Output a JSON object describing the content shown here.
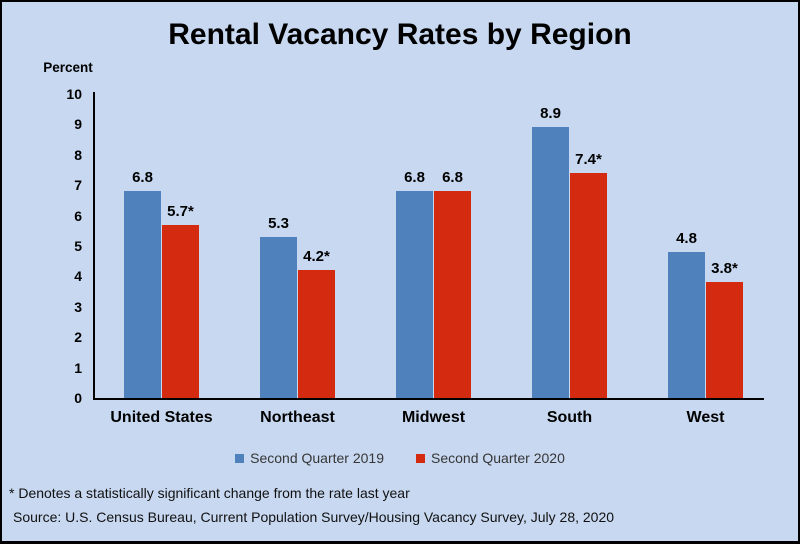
{
  "frame": {
    "background_color": "#C7D8F0",
    "border_color": "#000000"
  },
  "chart_data": {
    "type": "bar",
    "title": "Rental Vacancy Rates by Region",
    "xlabel": "",
    "ylabel": "Percent",
    "ylim": [
      0,
      10
    ],
    "ytick_step": 1,
    "grid": false,
    "legend_position": "bottom",
    "categories": [
      "United States",
      "Northeast",
      "Midwest",
      "South",
      "West"
    ],
    "series": [
      {
        "name": "Second Quarter 2019",
        "color": "#4F81BD",
        "values": [
          6.8,
          5.3,
          6.8,
          8.9,
          4.8
        ],
        "labels": [
          "6.8",
          "5.3",
          "6.8",
          "8.9",
          "4.8"
        ]
      },
      {
        "name": "Second Quarter 2020",
        "color": "#D42B10",
        "values": [
          5.7,
          4.2,
          6.8,
          7.4,
          3.8
        ],
        "labels": [
          "5.7*",
          "4.2*",
          "6.8",
          "7.4*",
          "3.8*"
        ]
      }
    ]
  },
  "notes": {
    "footnote": "* Denotes a statistically significant change from the rate last year",
    "source": "Source: U.S. Census Bureau, Current Population Survey/Housing Vacancy Survey, July 28, 2020"
  }
}
